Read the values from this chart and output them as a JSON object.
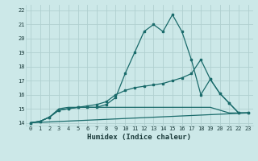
{
  "xlabel": "Humidex (Indice chaleur)",
  "bg_color": "#cce8e8",
  "grid_color": "#b0d0d0",
  "line_color": "#1a6b6b",
  "xlim": [
    -0.5,
    23.5
  ],
  "ylim": [
    13.8,
    22.4
  ],
  "xticks": [
    0,
    1,
    2,
    3,
    4,
    5,
    6,
    7,
    8,
    9,
    10,
    11,
    12,
    13,
    14,
    15,
    16,
    17,
    18,
    19,
    20,
    21,
    22,
    23
  ],
  "yticks": [
    14,
    15,
    16,
    17,
    18,
    19,
    20,
    21,
    22
  ],
  "curve1_x": [
    0,
    1,
    2,
    3,
    4,
    5,
    6,
    7,
    8,
    9,
    10,
    11,
    12,
    13,
    14,
    15,
    16,
    17,
    18,
    19,
    20,
    21,
    22,
    23
  ],
  "curve1_y": [
    14.0,
    14.1,
    14.4,
    14.9,
    15.0,
    15.1,
    15.1,
    15.1,
    15.3,
    15.8,
    17.5,
    19.0,
    20.5,
    21.0,
    20.5,
    21.7,
    20.5,
    18.5,
    16.0,
    17.1,
    16.1,
    15.4,
    14.7,
    14.7
  ],
  "curve2_x": [
    0,
    1,
    2,
    3,
    4,
    5,
    6,
    7,
    8,
    9,
    10,
    11,
    12,
    13,
    14,
    15,
    16,
    17,
    18,
    19,
    20,
    21,
    22,
    23
  ],
  "curve2_y": [
    14.0,
    14.1,
    14.4,
    14.9,
    15.0,
    15.1,
    15.2,
    15.3,
    15.5,
    16.0,
    16.3,
    16.5,
    16.6,
    16.7,
    16.8,
    17.0,
    17.2,
    17.5,
    18.5,
    17.1,
    16.1,
    15.4,
    14.7,
    14.7
  ],
  "curve3_x": [
    0,
    23
  ],
  "curve3_y": [
    14.0,
    14.7
  ],
  "curve4_x": [
    0,
    1,
    2,
    3,
    4,
    5,
    6,
    7,
    8,
    9,
    10,
    11,
    12,
    13,
    14,
    15,
    16,
    17,
    18,
    19,
    20,
    21,
    22,
    23
  ],
  "curve4_y": [
    14.0,
    14.1,
    14.4,
    15.0,
    15.1,
    15.1,
    15.1,
    15.1,
    15.1,
    15.1,
    15.1,
    15.1,
    15.1,
    15.1,
    15.1,
    15.1,
    15.1,
    15.1,
    15.1,
    15.1,
    14.9,
    14.7,
    14.7,
    14.7
  ]
}
